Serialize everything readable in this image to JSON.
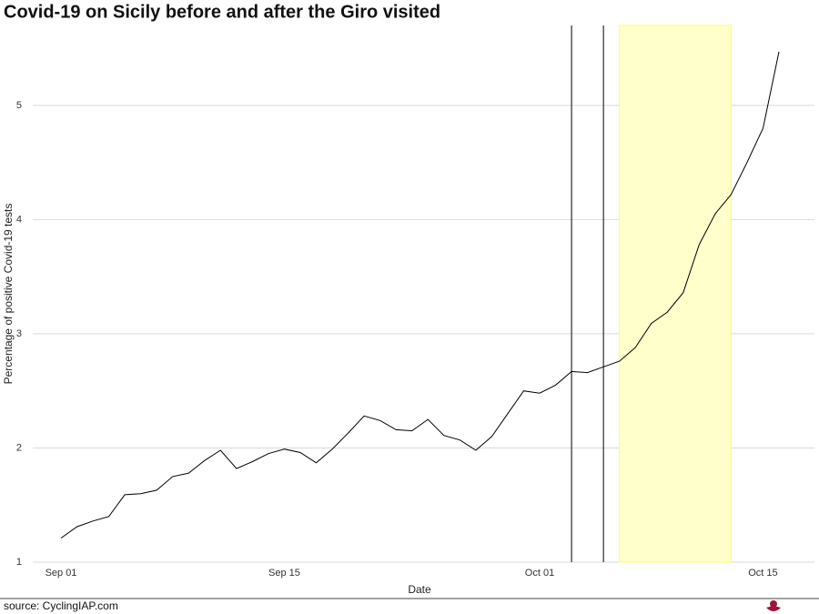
{
  "chart_data": {
    "type": "line",
    "title": "Covid-19 on Sicily before and after the Giro visited",
    "x_label": "Date",
    "y_label": "Percentage of positive Covid-19 tests",
    "source": "source: CyclingIAP.com",
    "categories": [
      "Sep 01",
      null,
      null,
      null,
      null,
      null,
      null,
      null,
      null,
      null,
      null,
      null,
      null,
      null,
      "Sep 15",
      null,
      null,
      null,
      null,
      null,
      null,
      null,
      null,
      null,
      null,
      null,
      null,
      null,
      null,
      null,
      "Oct 01",
      null,
      null,
      null,
      null,
      null,
      null,
      null,
      null,
      null,
      null,
      null,
      null,
      null,
      "Oct 15",
      null
    ],
    "values": [
      1.21,
      1.31,
      1.36,
      1.4,
      1.59,
      1.6,
      1.63,
      1.75,
      1.78,
      1.89,
      1.98,
      1.82,
      1.88,
      1.95,
      1.99,
      1.96,
      1.87,
      1.99,
      2.13,
      2.28,
      2.24,
      2.16,
      2.15,
      2.25,
      2.11,
      2.07,
      1.98,
      2.1,
      2.3,
      2.5,
      2.48,
      2.55,
      2.67,
      2.66,
      2.71,
      2.76,
      2.88,
      3.09,
      3.19,
      3.36,
      3.78,
      4.05,
      4.22,
      4.5,
      4.8,
      5.47
    ],
    "color": "#000000",
    "vlines": [
      32,
      34
    ],
    "shade": [
      35,
      42
    ],
    "shade_color": "#ffffcc",
    "ylim": [
      1,
      5.7
    ],
    "yticks": [
      1,
      2,
      3,
      4,
      5
    ],
    "grid": true
  }
}
